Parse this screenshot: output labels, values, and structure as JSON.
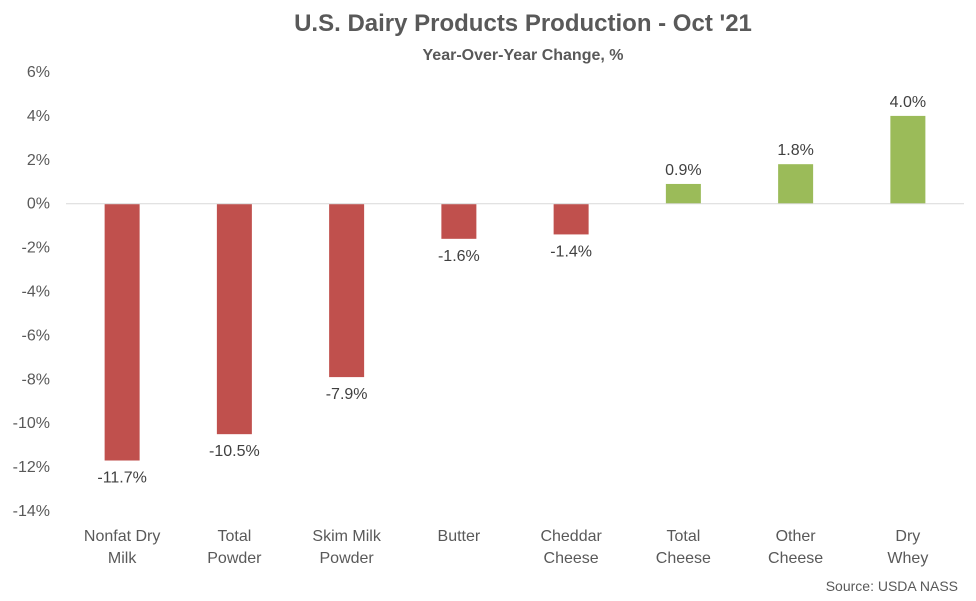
{
  "chart_data": {
    "type": "bar",
    "title": "U.S. Dairy Products Production - Oct '21",
    "subtitle": "Year-Over-Year Change, %",
    "categories": [
      [
        "Nonfat Dry",
        "Milk"
      ],
      [
        "Total",
        "Powder"
      ],
      [
        "Skim Milk",
        "Powder"
      ],
      [
        "Butter"
      ],
      [
        "Cheddar",
        "Cheese"
      ],
      [
        "Total",
        "Cheese"
      ],
      [
        "Other",
        "Cheese"
      ],
      [
        "Dry",
        "Whey"
      ]
    ],
    "values": [
      -11.7,
      -10.5,
      -7.9,
      -1.6,
      -1.4,
      0.9,
      1.8,
      4.0
    ],
    "value_labels": [
      "-11.7%",
      "-10.5%",
      "-7.9%",
      "-1.6%",
      "-1.4%",
      "0.9%",
      "1.8%",
      "4.0%"
    ],
    "ylim": [
      -14,
      6
    ],
    "yticks": [
      6,
      4,
      2,
      0,
      -2,
      -4,
      -6,
      -8,
      -10,
      -12,
      -14
    ],
    "ytick_labels": [
      "6%",
      "4%",
      "2%",
      "0%",
      "-2%",
      "-4%",
      "-6%",
      "-8%",
      "-10%",
      "-12%",
      "-14%"
    ],
    "colors": {
      "negative": "#C0504D",
      "positive": "#9BBB59",
      "axis": "#D9D9D9",
      "text": "#595959"
    },
    "grid": false,
    "legend": "none",
    "source": "Source: USDA NASS"
  }
}
